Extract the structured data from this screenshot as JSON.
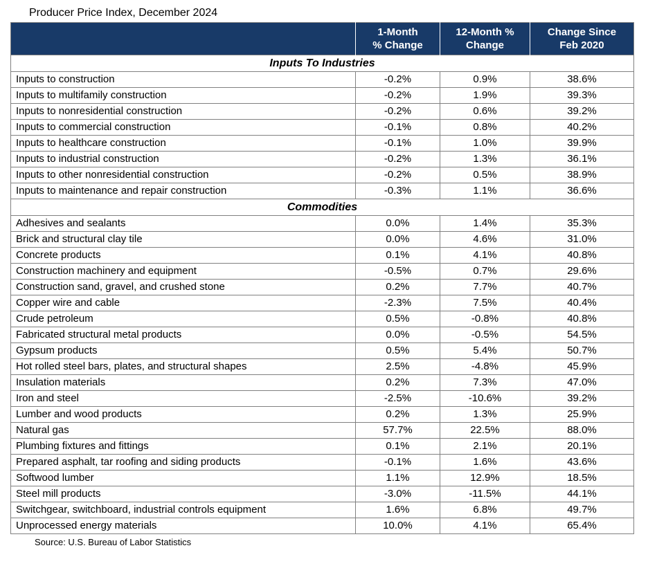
{
  "title": "Producer Price Index, December 2024",
  "source": "Source: U.S. Bureau of Labor Statistics",
  "colors": {
    "header_bg": "#183A68",
    "header_text": "#FFFFFF",
    "grid_border": "#808080",
    "body_text": "#000000"
  },
  "header_lines": [
    [
      ""
    ],
    [
      "1-Month",
      "% Change"
    ],
    [
      "12-Month %",
      "Change"
    ],
    [
      "Change Since",
      "Feb 2020"
    ]
  ],
  "chart_data": {
    "type": "table",
    "title": "Producer Price Index, December 2024",
    "columns": [
      "",
      "1-Month % Change",
      "12-Month % Change",
      "Change Since Feb 2020"
    ],
    "sections": [
      {
        "name": "Inputs To Industries",
        "rows": [
          [
            "Inputs to construction",
            "-0.2%",
            "0.9%",
            "38.6%"
          ],
          [
            "Inputs to multifamily construction",
            "-0.2%",
            "1.9%",
            "39.3%"
          ],
          [
            "Inputs to nonresidential construction",
            "-0.2%",
            "0.6%",
            "39.2%"
          ],
          [
            "Inputs to commercial construction",
            "-0.1%",
            "0.8%",
            "40.2%"
          ],
          [
            "Inputs to healthcare construction",
            "-0.1%",
            "1.0%",
            "39.9%"
          ],
          [
            "Inputs to industrial construction",
            "-0.2%",
            "1.3%",
            "36.1%"
          ],
          [
            "Inputs to other nonresidential construction",
            "-0.2%",
            "0.5%",
            "38.9%"
          ],
          [
            "Inputs to maintenance and repair construction",
            "-0.3%",
            "1.1%",
            "36.6%"
          ]
        ]
      },
      {
        "name": "Commodities",
        "rows": [
          [
            "Adhesives and sealants",
            "0.0%",
            "1.4%",
            "35.3%"
          ],
          [
            "Brick and structural clay tile",
            "0.0%",
            "4.6%",
            "31.0%"
          ],
          [
            "Concrete products",
            "0.1%",
            "4.1%",
            "40.8%"
          ],
          [
            "Construction machinery and equipment",
            "-0.5%",
            "0.7%",
            "29.6%"
          ],
          [
            "Construction sand, gravel, and crushed stone",
            "0.2%",
            "7.7%",
            "40.7%"
          ],
          [
            "Copper wire and cable",
            "-2.3%",
            "7.5%",
            "40.4%"
          ],
          [
            "Crude petroleum",
            "0.5%",
            "-0.8%",
            "40.8%"
          ],
          [
            "Fabricated structural metal products",
            "0.0%",
            "-0.5%",
            "54.5%"
          ],
          [
            "Gypsum products",
            "0.5%",
            "5.4%",
            "50.7%"
          ],
          [
            "Hot rolled steel bars, plates, and structural shapes",
            "2.5%",
            "-4.8%",
            "45.9%"
          ],
          [
            "Insulation materials",
            "0.2%",
            "7.3%",
            "47.0%"
          ],
          [
            "Iron and steel",
            "-2.5%",
            "-10.6%",
            "39.2%"
          ],
          [
            "Lumber and wood products",
            "0.2%",
            "1.3%",
            "25.9%"
          ],
          [
            "Natural gas",
            "57.7%",
            "22.5%",
            "88.0%"
          ],
          [
            "Plumbing fixtures and fittings",
            "0.1%",
            "2.1%",
            "20.1%"
          ],
          [
            "Prepared asphalt, tar roofing and siding products",
            "-0.1%",
            "1.6%",
            "43.6%"
          ],
          [
            "Softwood lumber",
            "1.1%",
            "12.9%",
            "18.5%"
          ],
          [
            "Steel mill products",
            "-3.0%",
            "-11.5%",
            "44.1%"
          ],
          [
            "Switchgear, switchboard, industrial controls equipment",
            "1.6%",
            "6.8%",
            "49.7%"
          ],
          [
            "Unprocessed energy materials",
            "10.0%",
            "4.1%",
            "65.4%"
          ]
        ]
      }
    ],
    "source": "Source: U.S. Bureau of Labor Statistics"
  }
}
